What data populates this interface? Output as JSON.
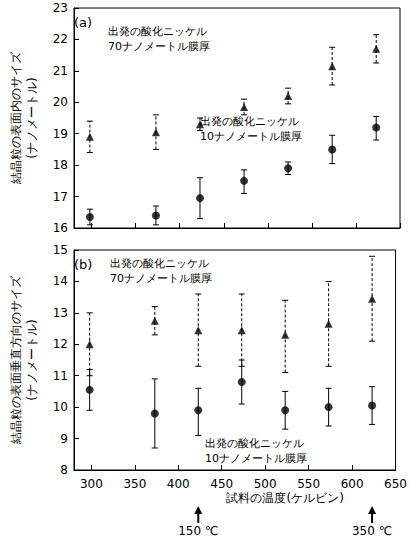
{
  "chart_data": [
    {
      "type": "scatter",
      "title": "(a)",
      "y_label": "結晶粒の表面内のサイズ\n(ナノメートル)",
      "xlim": [
        280,
        650
      ],
      "xticks": [
        300,
        350,
        400,
        450,
        500,
        550,
        600,
        650
      ],
      "ylim": [
        16,
        23
      ],
      "yticks": [
        16,
        17,
        18,
        19,
        20,
        21,
        22,
        23
      ],
      "grid": false,
      "tick_labels": "y",
      "series": [
        {
          "name": "出発の酸化ニッケル\n70ナノメートル膜厚",
          "marker": "triangle",
          "color": "#000000",
          "line_style": "dashed",
          "x": [
            298,
            373,
            423,
            473,
            523,
            573,
            623
          ],
          "values": [
            18.9,
            19.05,
            19.3,
            19.85,
            20.2,
            21.15,
            21.7
          ],
          "error_low": [
            18.4,
            18.5,
            19.1,
            19.6,
            19.95,
            20.55,
            21.25
          ],
          "error_high": [
            19.4,
            19.6,
            19.5,
            20.1,
            20.45,
            21.75,
            22.15
          ]
        },
        {
          "name": "出発の酸化ニッケル\n10ナノメートル膜厚",
          "marker": "circle",
          "color": "#000000",
          "line_style": "solid",
          "x": [
            298,
            373,
            423,
            473,
            523,
            573,
            623
          ],
          "values": [
            16.35,
            16.4,
            16.95,
            17.5,
            17.9,
            18.5,
            19.2
          ],
          "error_low": [
            16.1,
            16.1,
            16.3,
            17.1,
            17.7,
            18.05,
            18.8
          ],
          "error_high": [
            16.6,
            16.7,
            17.6,
            17.85,
            18.1,
            18.95,
            19.55
          ]
        }
      ]
    },
    {
      "type": "scatter",
      "title": "(b)",
      "y_label": "結晶粒の表面垂直方向のサイズ\n(ナノメートル)",
      "x_label": "試料の温度(ケルビン)",
      "xlim": [
        280,
        650
      ],
      "xticks": [
        300,
        350,
        400,
        450,
        500,
        550,
        600,
        650
      ],
      "ylim": [
        8,
        15
      ],
      "yticks": [
        8,
        9,
        10,
        11,
        12,
        13,
        14,
        15
      ],
      "grid": false,
      "annotations": [
        {
          "x": 423,
          "text": "150 ℃"
        },
        {
          "x": 623,
          "text": "350 ℃"
        }
      ],
      "series": [
        {
          "name": "出発の酸化ニッケル\n70ナノメートル膜厚",
          "marker": "triangle",
          "color": "#000000",
          "line_style": "dashed",
          "x": [
            298,
            373,
            423,
            473,
            523,
            573,
            623
          ],
          "values": [
            12.0,
            12.75,
            12.45,
            12.45,
            12.3,
            12.65,
            13.45
          ],
          "error_low": [
            11.0,
            12.3,
            11.3,
            11.3,
            11.1,
            11.3,
            12.1
          ],
          "error_high": [
            13.0,
            13.2,
            13.6,
            13.6,
            13.4,
            14.0,
            14.8
          ]
        },
        {
          "name": "出発の酸化ニッケル\n10ナノメートル膜厚",
          "marker": "circle",
          "color": "#000000",
          "line_style": "solid",
          "x": [
            298,
            373,
            423,
            473,
            523,
            573,
            623
          ],
          "values": [
            10.55,
            9.8,
            9.9,
            10.8,
            9.9,
            10.0,
            10.05
          ],
          "error_low": [
            9.9,
            8.7,
            9.1,
            10.1,
            9.3,
            9.4,
            9.45
          ],
          "error_high": [
            11.2,
            10.9,
            10.6,
            11.5,
            10.5,
            10.6,
            10.65
          ]
        }
      ]
    }
  ]
}
